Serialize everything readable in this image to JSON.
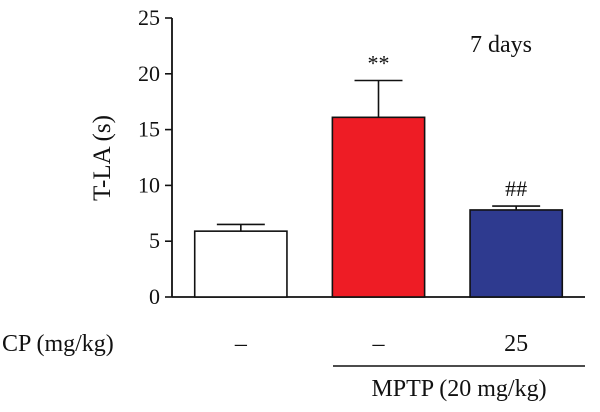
{
  "chart_data": {
    "type": "bar",
    "title": "",
    "annotation": "7 days",
    "ylabel": "T-LA (s)",
    "ylim": [
      0,
      25
    ],
    "yticks": [
      0,
      5,
      10,
      15,
      20,
      25
    ],
    "categories": [
      "",
      "",
      ""
    ],
    "values": [
      5.9,
      16.1,
      7.8
    ],
    "errors": [
      0.6,
      3.3,
      0.35
    ],
    "bar_colors": [
      "#ffffff",
      "#ee1c25",
      "#2e3a8f"
    ],
    "significance": [
      "",
      "**",
      "##"
    ],
    "rows": [
      {
        "label": "CP (mg/kg)",
        "values": [
          "–",
          "–",
          "25"
        ]
      }
    ],
    "group_label": "MPTP (20 mg/kg)"
  }
}
